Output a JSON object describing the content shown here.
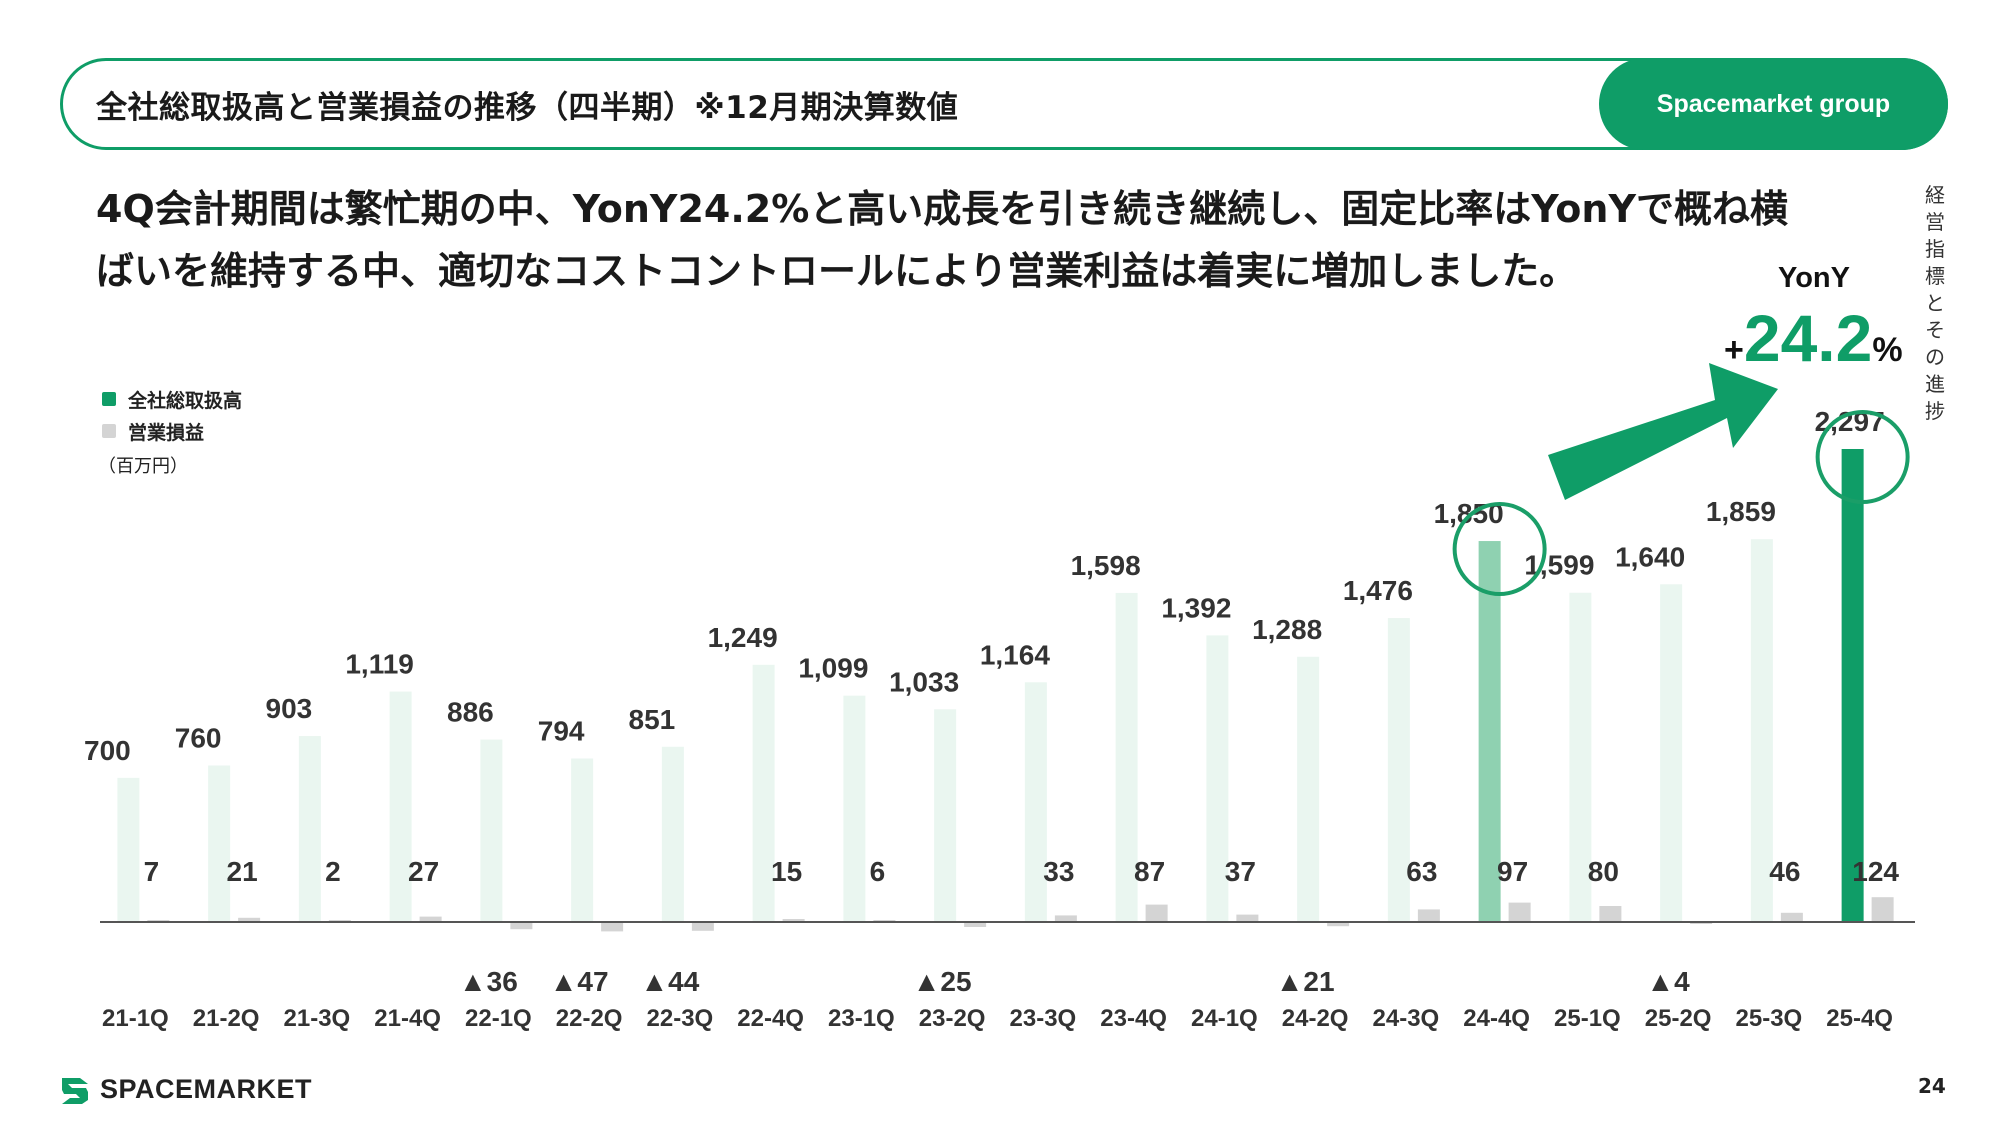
{
  "header": {
    "title": "全社総取扱高と営業損益の推移（四半期）※12月期決算数値",
    "badge": "Spacemarket group"
  },
  "headline": {
    "line1": "4Q会計期間は繁忙期の中、YonY24.2%と高い成長を引き続き継続し、固定比率はYonYで概ね横",
    "line2": "ばいを維持する中、適切なコストコントロールにより営業利益は着実に増加しました。"
  },
  "side_label": "経営指標とその進捗",
  "legend": {
    "items": [
      "全社総取扱高",
      "営業損益"
    ]
  },
  "unit_label": "（百万円）",
  "yony": {
    "label": "YonY",
    "sign": "+",
    "value": "24.2",
    "percent": "%"
  },
  "colors": {
    "accent": "#0f9d67",
    "gmv_faint": "#eaf6f0",
    "gmv_mid": "#8fd1b1",
    "op": "#d4d4d4",
    "circle": "#1a9e68"
  },
  "chart_data": {
    "type": "bar",
    "categories": [
      "21-1Q",
      "21-2Q",
      "21-3Q",
      "21-4Q",
      "22-1Q",
      "22-2Q",
      "22-3Q",
      "22-4Q",
      "23-1Q",
      "23-2Q",
      "23-3Q",
      "23-4Q",
      "24-1Q",
      "24-2Q",
      "24-3Q",
      "24-4Q",
      "25-1Q",
      "25-2Q",
      "25-3Q",
      "25-4Q"
    ],
    "series": [
      {
        "name": "全社総取扱高",
        "values": [
          700,
          760,
          903,
          1119,
          886,
          794,
          851,
          1249,
          1099,
          1033,
          1164,
          1598,
          1392,
          1288,
          1476,
          1850,
          1599,
          1640,
          1859,
          2297
        ],
        "labels": [
          "700",
          "760",
          "903",
          "1,119",
          "886",
          "794",
          "851",
          "1,249",
          "1,099",
          "1,033",
          "1,164",
          "1,598",
          "1,392",
          "1,288",
          "1,476",
          "1,850",
          "1,599",
          "1,640",
          "1,859",
          "2,297"
        ]
      },
      {
        "name": "営業損益",
        "values": [
          7,
          21,
          2,
          27,
          -36,
          -47,
          -44,
          15,
          6,
          -25,
          33,
          87,
          37,
          -21,
          63,
          97,
          80,
          -4,
          46,
          124
        ],
        "labels": [
          "7",
          "21",
          "2",
          "27",
          "▲36",
          "▲47",
          "▲44",
          "15",
          "6",
          "▲25",
          "33",
          "87",
          "37",
          "▲21",
          "63",
          "97",
          "80",
          "▲4",
          "46",
          "124"
        ]
      }
    ],
    "highlight": [
      "24-4Q",
      "25-4Q"
    ]
  },
  "footer": {
    "logo_text": "SPACEMARKET",
    "page_number": "24"
  }
}
